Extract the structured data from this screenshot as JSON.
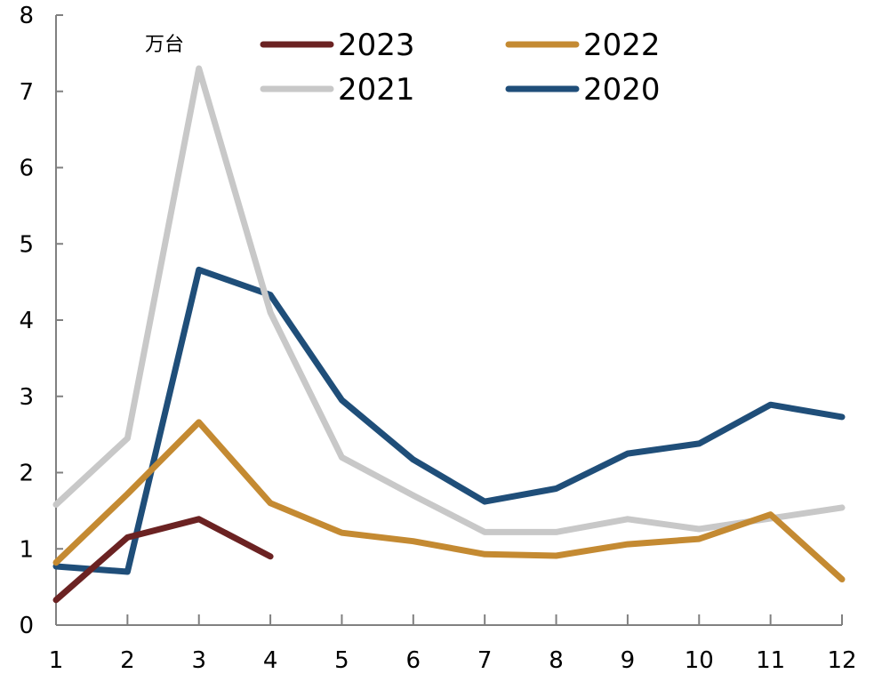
{
  "chart_data": {
    "type": "line",
    "title": "",
    "xlabel": "",
    "ylabel": "",
    "unit": "万台",
    "x": [
      1,
      2,
      3,
      4,
      5,
      6,
      7,
      8,
      9,
      10,
      11,
      12
    ],
    "xticks": [
      "1",
      "2",
      "3",
      "4",
      "5",
      "6",
      "7",
      "8",
      "9",
      "10",
      "11",
      "12"
    ],
    "ylim": [
      0,
      8
    ],
    "yticks": [
      "0",
      "1",
      "2",
      "3",
      "4",
      "5",
      "6",
      "7",
      "8"
    ],
    "grid": false,
    "legend": "top",
    "series": [
      {
        "name": "2023",
        "color": "#6b2222",
        "values": [
          0.33,
          1.15,
          1.39,
          0.9,
          null,
          null,
          null,
          null,
          null,
          null,
          null,
          null
        ]
      },
      {
        "name": "2022",
        "color": "#c48a32",
        "values": [
          0.82,
          1.72,
          2.66,
          1.6,
          1.21,
          1.1,
          0.93,
          0.91,
          1.06,
          1.13,
          1.45,
          0.6
        ]
      },
      {
        "name": "2021",
        "color": "#c8c8c8",
        "values": [
          1.58,
          2.45,
          7.3,
          4.1,
          2.2,
          1.7,
          1.22,
          1.22,
          1.39,
          1.26,
          1.4,
          1.54
        ]
      },
      {
        "name": "2020",
        "color": "#1f4e79",
        "values": [
          0.77,
          0.7,
          4.66,
          4.33,
          2.95,
          2.17,
          1.62,
          1.79,
          2.25,
          2.38,
          2.89,
          2.73
        ]
      }
    ]
  }
}
